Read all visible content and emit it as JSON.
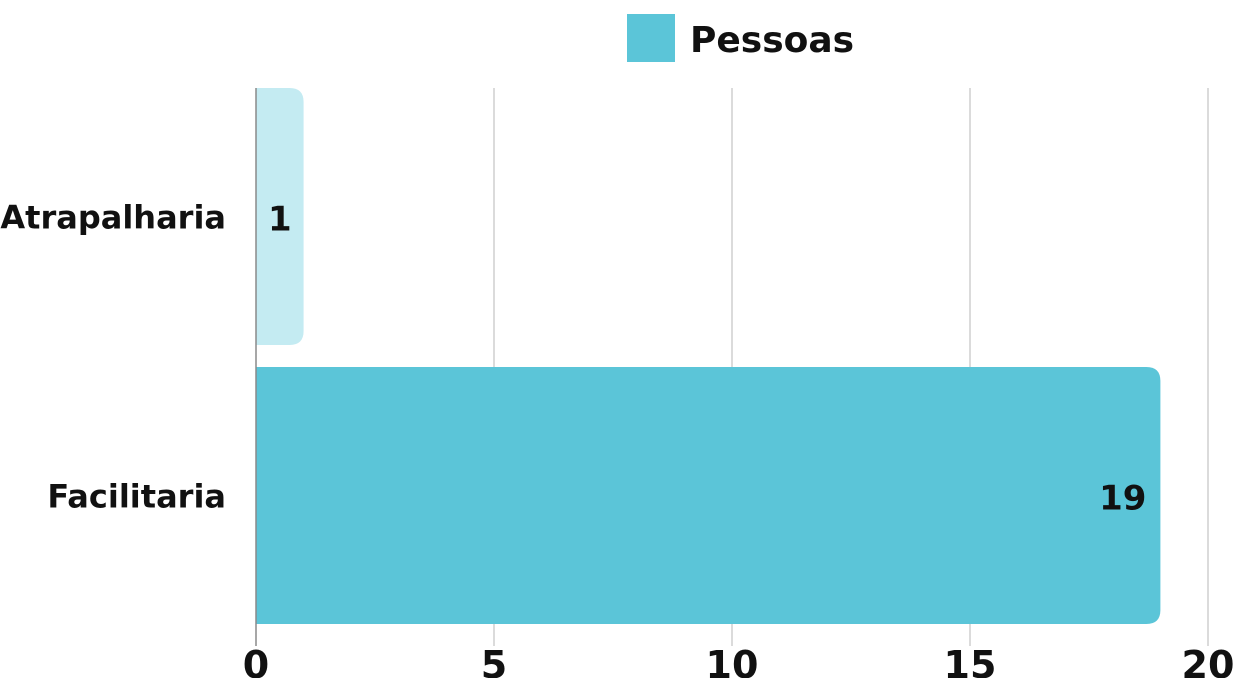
{
  "chart_data": {
    "type": "bar",
    "orientation": "horizontal",
    "categories": [
      "Atrapalharia",
      "Facilitaria"
    ],
    "series": [
      {
        "name": "Pessoas",
        "values": [
          1,
          19
        ],
        "color": "#5bc5d8",
        "highlight_color": "#c4ebf2"
      }
    ],
    "xlim": [
      0,
      20
    ],
    "xticks": [
      "0",
      "5",
      "10",
      "15",
      "20"
    ],
    "grid": true,
    "legend": "top-center",
    "data_labels": [
      "1",
      "19"
    ]
  }
}
